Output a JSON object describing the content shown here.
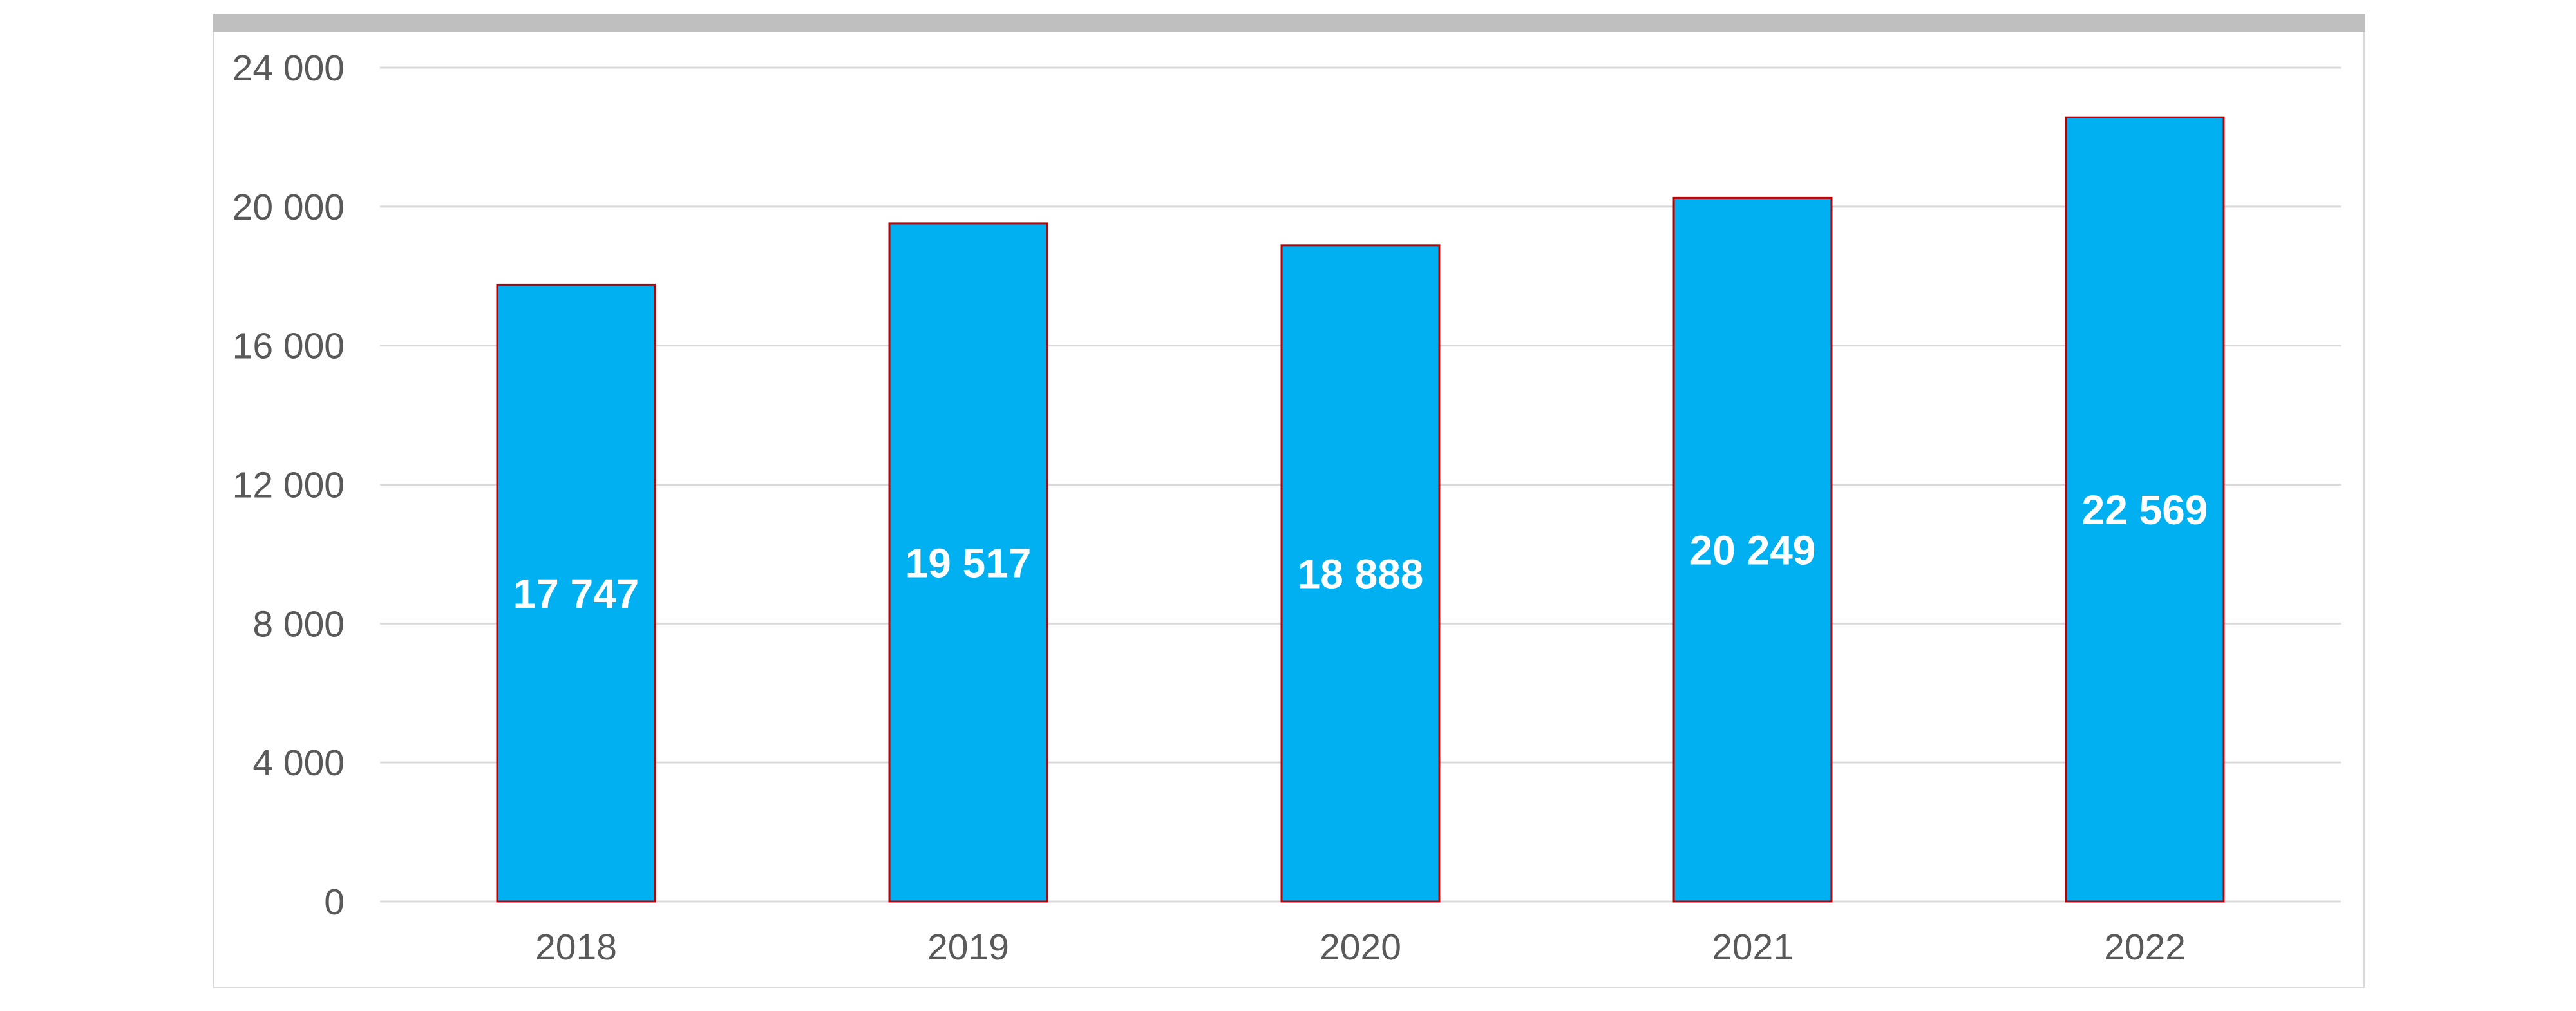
{
  "chart_data": {
    "type": "bar",
    "categories": [
      "2018",
      "2019",
      "2020",
      "2021",
      "2022"
    ],
    "values": [
      17747,
      19517,
      18888,
      20249,
      22569
    ],
    "value_labels": [
      "17 747",
      "19 517",
      "18 888",
      "20 249",
      "22 569"
    ],
    "yticks": [
      0,
      4000,
      8000,
      12000,
      16000,
      20000,
      24000
    ],
    "ytick_labels": [
      "0",
      "4 000",
      "8 000",
      "12 000",
      "16 000",
      "20 000",
      "24 000"
    ],
    "ylim": [
      0,
      24000
    ],
    "grid": true,
    "title": "",
    "xlabel": "",
    "ylabel": "",
    "colors": {
      "bar_fill": "#00b0f0",
      "bar_edge": "#c00000",
      "grid": "#d9d9d9",
      "frame_band": "#bfbfbf"
    }
  }
}
